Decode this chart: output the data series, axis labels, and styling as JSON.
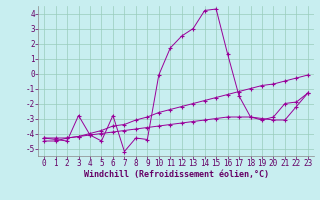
{
  "xlabel": "Windchill (Refroidissement éolien,°C)",
  "bg_color": "#c8eef0",
  "grid_color": "#99ccbb",
  "line_color": "#990099",
  "xlim": [
    -0.5,
    23.5
  ],
  "ylim": [
    -5.5,
    4.5
  ],
  "xticks": [
    0,
    1,
    2,
    3,
    4,
    5,
    6,
    7,
    8,
    9,
    10,
    11,
    12,
    13,
    14,
    15,
    16,
    17,
    18,
    19,
    20,
    21,
    22,
    23
  ],
  "yticks": [
    -5,
    -4,
    -3,
    -2,
    -1,
    0,
    1,
    2,
    3,
    4
  ],
  "curve1_x": [
    0,
    1,
    2,
    3,
    4,
    5,
    6,
    7,
    8,
    9,
    10,
    11,
    12,
    13,
    14,
    15,
    16,
    17,
    18,
    19,
    20,
    21,
    22,
    23
  ],
  "curve1_y": [
    -4.3,
    -4.4,
    -4.5,
    -2.8,
    -4.1,
    -4.5,
    -2.8,
    -5.2,
    -4.3,
    -4.4,
    -0.1,
    1.7,
    2.5,
    3.0,
    4.2,
    4.3,
    1.3,
    -1.5,
    -2.9,
    -3.1,
    -2.9,
    -2.0,
    -1.9,
    -1.3
  ],
  "curve2_x": [
    0,
    1,
    2,
    3,
    4,
    5,
    6,
    7,
    8,
    9,
    10,
    11,
    12,
    13,
    14,
    15,
    16,
    17,
    18,
    19,
    20,
    21,
    22,
    23
  ],
  "curve2_y": [
    -4.5,
    -4.5,
    -4.3,
    -4.2,
    -4.0,
    -3.8,
    -3.5,
    -3.4,
    -3.1,
    -2.9,
    -2.6,
    -2.4,
    -2.2,
    -2.0,
    -1.8,
    -1.6,
    -1.4,
    -1.2,
    -1.0,
    -0.8,
    -0.7,
    -0.5,
    -0.3,
    -0.1
  ],
  "curve3_x": [
    0,
    1,
    2,
    3,
    4,
    5,
    6,
    7,
    8,
    9,
    10,
    11,
    12,
    13,
    14,
    15,
    16,
    17,
    18,
    19,
    20,
    21,
    22,
    23
  ],
  "curve3_y": [
    -4.3,
    -4.3,
    -4.3,
    -4.2,
    -4.1,
    -4.0,
    -3.9,
    -3.8,
    -3.7,
    -3.6,
    -3.5,
    -3.4,
    -3.3,
    -3.2,
    -3.1,
    -3.0,
    -2.9,
    -2.9,
    -2.9,
    -3.0,
    -3.1,
    -3.1,
    -2.2,
    -1.3
  ],
  "xlabel_fontsize": 6,
  "tick_fontsize": 5.5
}
